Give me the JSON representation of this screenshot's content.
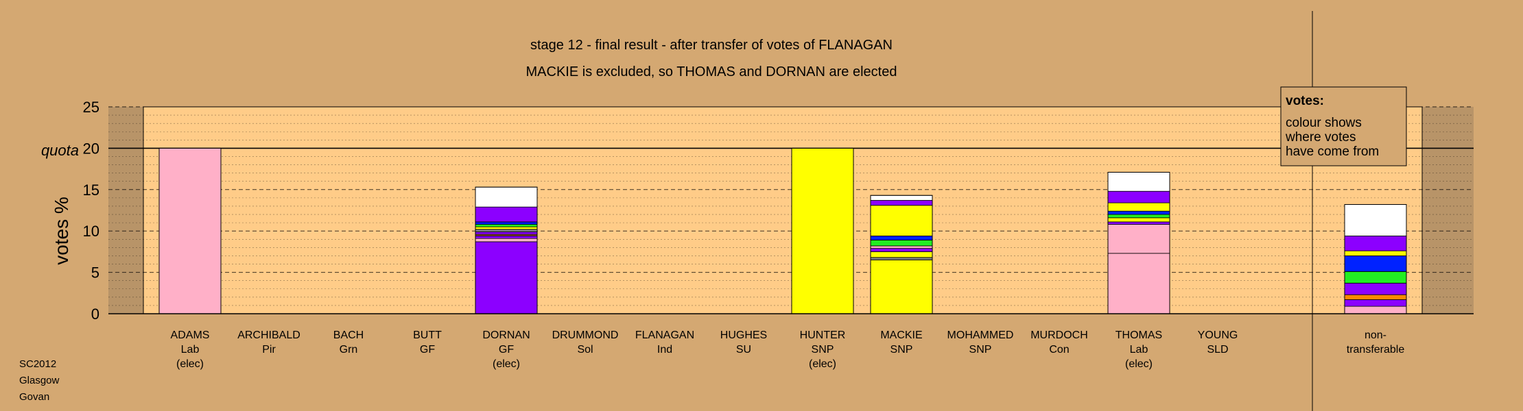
{
  "chart_data": {
    "type": "bar",
    "stacked": true,
    "title": "stage 12 - final result - after transfer of votes of FLANAGAN",
    "subtitle": "MACKIE is excluded, so THOMAS and DORNAN are elected",
    "ylabel": "votes %",
    "ylim": [
      0,
      25
    ],
    "yticks": [
      "0",
      "5",
      "10",
      "15",
      "20",
      "25"
    ],
    "quota": 20,
    "quota_label": "quota",
    "grid": true,
    "footer": [
      "SC2012",
      "Glasgow",
      "Govan"
    ],
    "legend": {
      "placement": "top-right",
      "title": "votes:",
      "lines": [
        "colour shows",
        "where votes",
        "have come from"
      ]
    },
    "candidates": [
      {
        "name": "ADAMS",
        "party": "Lab",
        "status": "(elec)",
        "segments": [
          {
            "v": 20.0,
            "c": "#ffb0c8"
          }
        ]
      },
      {
        "name": "ARCHIBALD",
        "party": "Pir",
        "status": "",
        "segments": []
      },
      {
        "name": "BACH",
        "party": "Grn",
        "status": "",
        "segments": []
      },
      {
        "name": "BUTT",
        "party": "GF",
        "status": "",
        "segments": []
      },
      {
        "name": "DORNAN",
        "party": "GF",
        "status": "(elec)",
        "segments": [
          {
            "v": 8.7,
            "c": "#8c00ff"
          },
          {
            "v": 0.4,
            "c": "#ffb0c8"
          },
          {
            "v": 0.3,
            "c": "#8c00ff"
          },
          {
            "v": 0.2,
            "c": "#a0522d"
          },
          {
            "v": 0.3,
            "c": "#8c00ff"
          },
          {
            "v": 0.3,
            "c": "#808080"
          },
          {
            "v": 0.3,
            "c": "#ffff00"
          },
          {
            "v": 0.3,
            "c": "#22ee22"
          },
          {
            "v": 0.3,
            "c": "#0022ff"
          },
          {
            "v": 1.8,
            "c": "#8c00ff"
          },
          {
            "v": 2.4,
            "c": "#ffffff"
          }
        ]
      },
      {
        "name": "DRUMMOND",
        "party": "Sol",
        "status": "",
        "segments": []
      },
      {
        "name": "FLANAGAN",
        "party": "Ind",
        "status": "",
        "segments": []
      },
      {
        "name": "HUGHES",
        "party": "SU",
        "status": "",
        "segments": []
      },
      {
        "name": "HUNTER",
        "party": "SNP",
        "status": "(elec)",
        "segments": [
          {
            "v": 20.0,
            "c": "#ffff00"
          }
        ]
      },
      {
        "name": "MACKIE",
        "party": "SNP",
        "status": "",
        "segments": [
          {
            "v": 6.5,
            "c": "#ffff00"
          },
          {
            "v": 0.3,
            "c": "#808080"
          },
          {
            "v": 0.7,
            "c": "#ffff00"
          },
          {
            "v": 0.4,
            "c": "#8c00ff"
          },
          {
            "v": 0.3,
            "c": "#ffb0c8"
          },
          {
            "v": 0.7,
            "c": "#22ee22"
          },
          {
            "v": 0.5,
            "c": "#0022ff"
          },
          {
            "v": 3.7,
            "c": "#ffff00"
          },
          {
            "v": 0.6,
            "c": "#8c00ff"
          },
          {
            "v": 0.6,
            "c": "#ffffff"
          }
        ]
      },
      {
        "name": "MOHAMMED",
        "party": "SNP",
        "status": "",
        "segments": []
      },
      {
        "name": "MURDOCH",
        "party": "Con",
        "status": "",
        "segments": []
      },
      {
        "name": "THOMAS",
        "party": "Lab",
        "status": "(elec)",
        "segments": [
          {
            "v": 7.3,
            "c": "#ffb0c8"
          },
          {
            "v": 3.5,
            "c": "#ffb0c8"
          },
          {
            "v": 0.3,
            "c": "#8c00ff"
          },
          {
            "v": 0.5,
            "c": "#ffff00"
          },
          {
            "v": 0.4,
            "c": "#22ee22"
          },
          {
            "v": 0.4,
            "c": "#0022ff"
          },
          {
            "v": 1.0,
            "c": "#ffff00"
          },
          {
            "v": 1.4,
            "c": "#8c00ff"
          },
          {
            "v": 2.3,
            "c": "#ffffff"
          }
        ]
      },
      {
        "name": "YOUNG",
        "party": "SLD",
        "status": "",
        "segments": []
      },
      {
        "name": "non-",
        "party": "transferable",
        "status": "",
        "segments": [
          {
            "v": 0.9,
            "c": "#ffb0c8"
          },
          {
            "v": 0.8,
            "c": "#8c00ff"
          },
          {
            "v": 0.6,
            "c": "#ff8800"
          },
          {
            "v": 1.4,
            "c": "#8c00ff"
          },
          {
            "v": 1.4,
            "c": "#22ee22"
          },
          {
            "v": 1.9,
            "c": "#0022ff"
          },
          {
            "v": 0.6,
            "c": "#ffff00"
          },
          {
            "v": 1.8,
            "c": "#8c00ff"
          },
          {
            "v": 3.8,
            "c": "#ffffff"
          }
        ]
      }
    ]
  },
  "colors": {
    "background": "#d4a872",
    "plot_area": "#ffcc88",
    "side_panel": "#b89468"
  }
}
